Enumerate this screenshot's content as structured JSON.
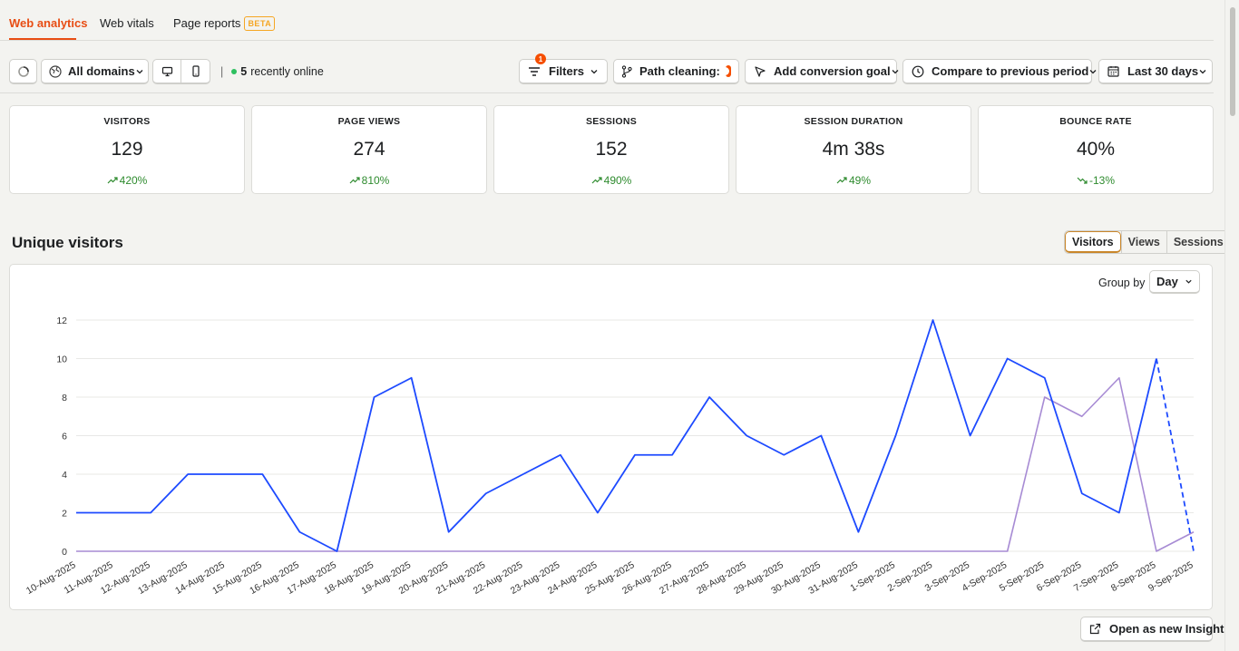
{
  "tabs": [
    {
      "label": "Web analytics"
    },
    {
      "label": "Web vitals"
    },
    {
      "label": "Page reports",
      "badge": "BETA"
    }
  ],
  "toolbar": {
    "domains": "All domains",
    "online_count": "5",
    "online_text": "recently online",
    "filters_label": "Filters",
    "filters_badge": "1",
    "path_cleaning_label": "Path cleaning:",
    "path_cleaning_on": true,
    "conversion_goal_label": "Add conversion goal",
    "compare_label": "Compare to previous period",
    "date_range_label": "Last 30 days"
  },
  "metrics": [
    {
      "label": "VISITORS",
      "value": "129",
      "delta": "420%",
      "trend": "up"
    },
    {
      "label": "PAGE VIEWS",
      "value": "274",
      "delta": "810%",
      "trend": "up"
    },
    {
      "label": "SESSIONS",
      "value": "152",
      "delta": "490%",
      "trend": "up"
    },
    {
      "label": "SESSION DURATION",
      "value": "4m 38s",
      "delta": "49%",
      "trend": "up"
    },
    {
      "label": "BOUNCE RATE",
      "value": "40%",
      "delta": "-13%",
      "trend": "down"
    }
  ],
  "section": {
    "title": "Unique visitors",
    "toggles": [
      "Visitors",
      "Views",
      "Sessions"
    ],
    "active_toggle": "Visitors",
    "group_by_label": "Group by",
    "group_by_value": "Day",
    "open_insight_label": "Open as new Insight"
  },
  "colors": {
    "accent": "#e84d14",
    "series_current": "#1d4aff",
    "series_previous": "#a78bd4",
    "positive": "#2e8b2e"
  },
  "chart_data": {
    "type": "line",
    "x": [
      "10-Aug-2025",
      "11-Aug-2025",
      "12-Aug-2025",
      "13-Aug-2025",
      "14-Aug-2025",
      "15-Aug-2025",
      "16-Aug-2025",
      "17-Aug-2025",
      "18-Aug-2025",
      "19-Aug-2025",
      "20-Aug-2025",
      "21-Aug-2025",
      "22-Aug-2025",
      "23-Aug-2025",
      "24-Aug-2025",
      "25-Aug-2025",
      "26-Aug-2025",
      "27-Aug-2025",
      "28-Aug-2025",
      "29-Aug-2025",
      "30-Aug-2025",
      "31-Aug-2025",
      "1-Sep-2025",
      "2-Sep-2025",
      "3-Sep-2025",
      "4-Sep-2025",
      "5-Sep-2025",
      "6-Sep-2025",
      "7-Sep-2025",
      "8-Sep-2025",
      "9-Sep-2025"
    ],
    "series": [
      {
        "values": [
          2,
          2,
          2,
          4,
          4,
          4,
          1,
          0,
          8,
          9,
          1,
          3,
          4,
          5,
          2,
          5,
          5,
          8,
          6,
          5,
          6,
          1,
          6,
          12,
          6,
          10,
          9,
          3,
          2,
          10,
          0
        ],
        "incomplete_last_point": true
      },
      {
        "values": [
          0,
          0,
          0,
          0,
          0,
          0,
          0,
          0,
          0,
          0,
          0,
          0,
          0,
          0,
          0,
          0,
          0,
          0,
          0,
          0,
          0,
          0,
          0,
          0,
          0,
          0,
          8,
          7,
          9,
          0,
          1
        ]
      }
    ],
    "ylim": [
      0,
      12
    ],
    "yticks": [
      0,
      2,
      4,
      6,
      8,
      10,
      12
    ],
    "grid": true,
    "legend": "none"
  }
}
